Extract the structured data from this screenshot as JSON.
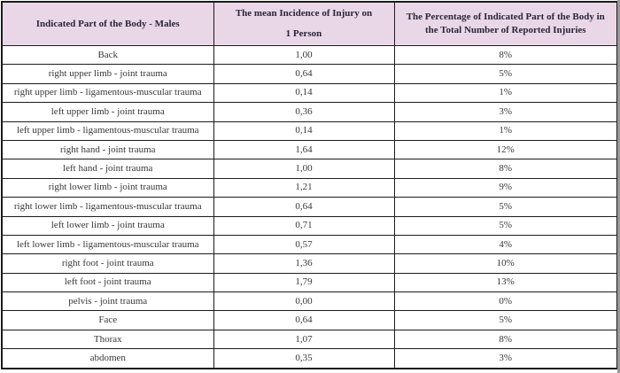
{
  "table": {
    "headers": {
      "col1": "Indicated Part of the Body - Males",
      "col2_line1": "The mean Incidence of Injury on",
      "col2_line2": "1 Person",
      "col3_line1": "The Percentage of Indicated Part of the Body in",
      "col3_line2": "the Total Number of Reported Injuries"
    },
    "rows": [
      [
        "Back",
        "1,00",
        "8%"
      ],
      [
        "right upper limb - joint trauma",
        "0,64",
        "5%"
      ],
      [
        "right upper limb - ligamentous-muscular trauma",
        "0,14",
        "1%"
      ],
      [
        "left upper limb - joint trauma",
        "0,36",
        "3%"
      ],
      [
        "left upper limb - ligamentous-muscular trauma",
        "0,14",
        "1%"
      ],
      [
        "right hand - joint trauma",
        "1,64",
        "12%"
      ],
      [
        "left hand - joint trauma",
        "1,00",
        "8%"
      ],
      [
        "right lower limb - joint trauma",
        "1,21",
        "9%"
      ],
      [
        "right lower limb - ligamentous-muscular trauma",
        "0,64",
        "5%"
      ],
      [
        "left lower limb - joint trauma",
        "0,71",
        "5%"
      ],
      [
        "left lower limb - ligamentous-muscular trauma",
        "0,57",
        "4%"
      ],
      [
        "right foot - joint trauma",
        "1,36",
        "10%"
      ],
      [
        "left foot - joint trauma",
        "1,79",
        "13%"
      ],
      [
        "pelvis - joint trauma",
        "0,00",
        "0%"
      ],
      [
        "Face",
        "0,64",
        "5%"
      ],
      [
        "Thorax",
        "1,07",
        "8%"
      ],
      [
        "abdomen",
        "0,35",
        "3%"
      ]
    ]
  },
  "chart_data": {
    "type": "table",
    "title": "Indicated Part of the Body - Males",
    "columns": [
      "Indicated Part of the Body - Males",
      "The mean Incidence of Injury on 1 Person",
      "The Percentage of Indicated Part of the Body in the Total Number of Reported Injuries"
    ],
    "mean_incidence": [
      1.0,
      0.64,
      0.14,
      0.36,
      0.14,
      1.64,
      1.0,
      1.21,
      0.64,
      0.71,
      0.57,
      1.36,
      1.79,
      0.0,
      0.64,
      1.07,
      0.35
    ],
    "percentage": [
      8,
      5,
      1,
      3,
      1,
      12,
      8,
      9,
      5,
      5,
      4,
      10,
      13,
      0,
      5,
      8,
      3
    ]
  },
  "colors": {
    "header_bg": "#e9d7e7",
    "header_text": "#29253a",
    "body_text": "#383838",
    "border": "#1c1c1c",
    "page_edge": "#999999"
  }
}
